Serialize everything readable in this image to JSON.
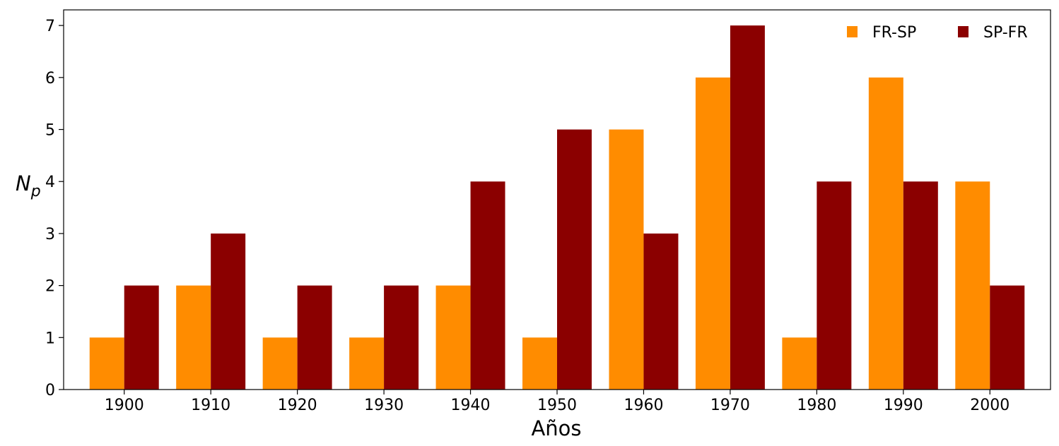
{
  "chart_data": {
    "type": "bar",
    "categories": [
      "1900",
      "1910",
      "1920",
      "1930",
      "1940",
      "1950",
      "1960",
      "1970",
      "1980",
      "1990",
      "2000"
    ],
    "series": [
      {
        "name": "FR-SP",
        "color": "#ff8c00",
        "values": [
          1,
          2,
          1,
          1,
          2,
          1,
          5,
          6,
          1,
          6,
          4
        ]
      },
      {
        "name": "SP-FR",
        "color": "#8b0000",
        "values": [
          2,
          3,
          2,
          2,
          4,
          5,
          3,
          7,
          4,
          4,
          2
        ]
      }
    ],
    "xlabel": "Años",
    "ylabel_main": "N",
    "ylabel_sub": "p",
    "ylim": [
      0,
      7.3
    ],
    "yticks": [
      0,
      1,
      2,
      3,
      4,
      5,
      6,
      7
    ],
    "grid": false,
    "legend": "top-right"
  }
}
